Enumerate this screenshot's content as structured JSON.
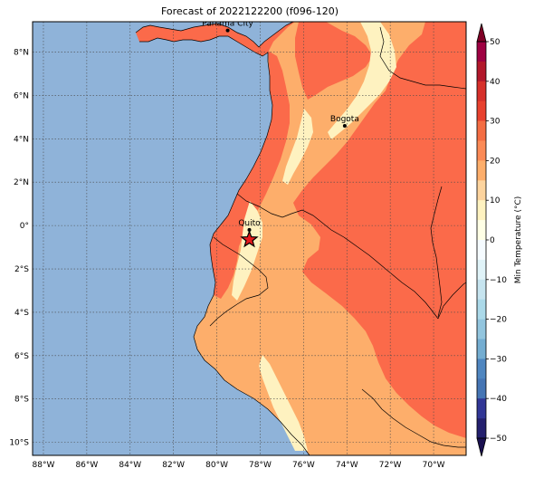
{
  "title": "Forecast of 2022122200 (f096-120)",
  "colors": {
    "ocean": "#8fb3d9",
    "land_10_20": "#fdae6b",
    "land_20_30": "#fb6a4a",
    "land_0_10": "#fef2c0",
    "border": "#000000",
    "grid": "#4a4a4a"
  },
  "map": {
    "lon_min": -88.5,
    "lon_max": -68.5,
    "lat_min": -10.6,
    "lat_max": 9.4,
    "lon_ticks": [
      -88,
      -86,
      -84,
      -82,
      -80,
      -78,
      -76,
      -74,
      -72,
      -70
    ],
    "lat_ticks": [
      8,
      6,
      4,
      2,
      0,
      -2,
      -4,
      -6,
      -8,
      -10
    ],
    "lon_tick_labels": [
      "88°W",
      "86°W",
      "84°W",
      "82°W",
      "80°W",
      "78°W",
      "76°W",
      "74°W",
      "72°W",
      "70°W"
    ],
    "lat_tick_labels": [
      "8°N",
      "6°N",
      "4°N",
      "2°N",
      "0°",
      "2°S",
      "4°S",
      "6°S",
      "8°S",
      "10°S"
    ]
  },
  "cities": [
    {
      "name": "Panama City",
      "lon": -79.5,
      "lat": 9.0
    },
    {
      "name": "Bogota",
      "lon": -74.1,
      "lat": 4.6
    },
    {
      "name": "Quito",
      "lon": -78.5,
      "lat": -0.2
    }
  ],
  "marker": {
    "lon": -78.5,
    "lat": -0.65,
    "symbol": "star"
  },
  "colorbar": {
    "label": "Min Temperature (°C)",
    "tick_values": [
      50,
      40,
      30,
      20,
      10,
      0,
      -10,
      -20,
      -30,
      -40,
      -50
    ],
    "tick_labels": [
      "50",
      "40",
      "30",
      "20",
      "10",
      "0",
      "−10",
      "−20",
      "−30",
      "−40",
      "−50"
    ],
    "bands": [
      {
        "from": 45,
        "to": 50,
        "color": "#9e0142"
      },
      {
        "from": 40,
        "to": 45,
        "color": "#b2182b"
      },
      {
        "from": 35,
        "to": 40,
        "color": "#d6302a"
      },
      {
        "from": 30,
        "to": 35,
        "color": "#e8412e"
      },
      {
        "from": 25,
        "to": 30,
        "color": "#f46d43"
      },
      {
        "from": 20,
        "to": 25,
        "color": "#fb8a56"
      },
      {
        "from": 15,
        "to": 20,
        "color": "#fdae6b"
      },
      {
        "from": 10,
        "to": 15,
        "color": "#fdd49e"
      },
      {
        "from": 5,
        "to": 10,
        "color": "#fef2c0"
      },
      {
        "from": 0,
        "to": 5,
        "color": "#ffffe5"
      },
      {
        "from": -5,
        "to": 0,
        "color": "#f5fbff"
      },
      {
        "from": -10,
        "to": -5,
        "color": "#e0f3f8"
      },
      {
        "from": -15,
        "to": -10,
        "color": "#c6e4ef"
      },
      {
        "from": -20,
        "to": -15,
        "color": "#abd9e9"
      },
      {
        "from": -25,
        "to": -20,
        "color": "#92c5de"
      },
      {
        "from": -30,
        "to": -25,
        "color": "#74add1"
      },
      {
        "from": -35,
        "to": -30,
        "color": "#4f86c0"
      },
      {
        "from": -40,
        "to": -35,
        "color": "#4575b4"
      },
      {
        "from": -45,
        "to": -40,
        "color": "#313695"
      },
      {
        "from": -50,
        "to": -45,
        "color": "#24206e"
      }
    ],
    "over_color": "#7f0026",
    "under_color": "#1a1050"
  }
}
